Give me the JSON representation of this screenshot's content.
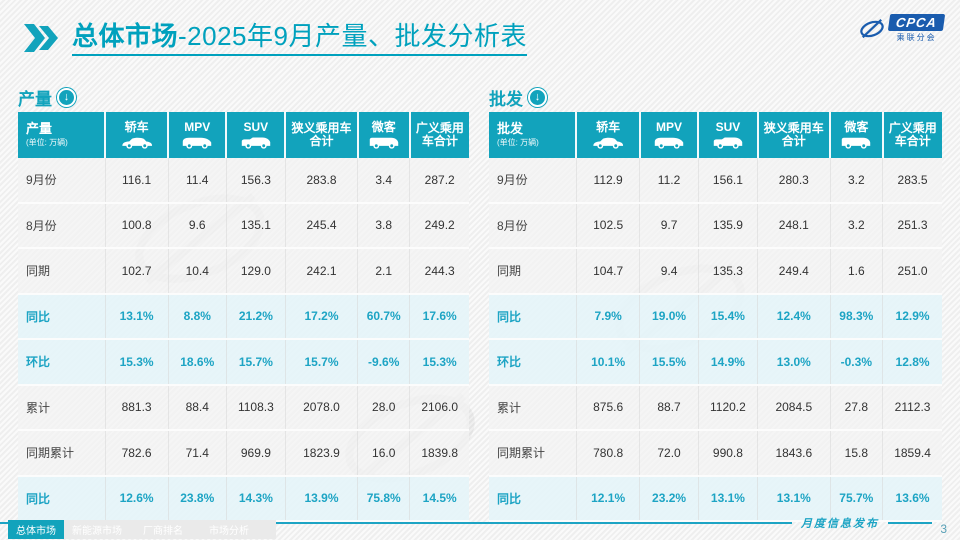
{
  "header": {
    "title_bold": "总体市场",
    "title_rest": "-2025年9月产量、批发分析表",
    "logo_text": "CPCA",
    "logo_subtext": "乘联分会"
  },
  "columns": [
    {
      "label": "轿车",
      "icon": "sedan-icon"
    },
    {
      "label": "MPV",
      "icon": "mpv-icon"
    },
    {
      "label": "SUV",
      "icon": "suv-icon"
    },
    {
      "label": "狭义乘用车合计",
      "icon": ""
    },
    {
      "label": "微客",
      "icon": "microvan-icon"
    },
    {
      "label": "广义乘用车合计",
      "icon": ""
    }
  ],
  "tables": [
    {
      "section_label": "产量",
      "unit": "(单位: 万辆)",
      "rows": [
        {
          "label": "9月份",
          "type": "num",
          "values": [
            "116.1",
            "11.4",
            "156.3",
            "283.8",
            "3.4",
            "287.2"
          ]
        },
        {
          "label": "8月份",
          "type": "num",
          "values": [
            "100.8",
            "9.6",
            "135.1",
            "245.4",
            "3.8",
            "249.2"
          ]
        },
        {
          "label": "同期",
          "type": "num",
          "values": [
            "102.7",
            "10.4",
            "129.0",
            "242.1",
            "2.1",
            "244.3"
          ]
        },
        {
          "label": "同比",
          "type": "pct",
          "values": [
            "13.1%",
            "8.8%",
            "21.2%",
            "17.2%",
            "60.7%",
            "17.6%"
          ]
        },
        {
          "label": "环比",
          "type": "pct",
          "values": [
            "15.3%",
            "18.6%",
            "15.7%",
            "15.7%",
            "-9.6%",
            "15.3%"
          ]
        },
        {
          "label": "累计",
          "type": "num",
          "values": [
            "881.3",
            "88.4",
            "1108.3",
            "2078.0",
            "28.0",
            "2106.0"
          ]
        },
        {
          "label": "同期累计",
          "type": "num",
          "values": [
            "782.6",
            "71.4",
            "969.9",
            "1823.9",
            "16.0",
            "1839.8"
          ]
        },
        {
          "label": "同比",
          "type": "pct",
          "values": [
            "12.6%",
            "23.8%",
            "14.3%",
            "13.9%",
            "75.8%",
            "14.5%"
          ]
        }
      ]
    },
    {
      "section_label": "批发",
      "unit": "(单位: 万辆)",
      "rows": [
        {
          "label": "9月份",
          "type": "num",
          "values": [
            "112.9",
            "11.2",
            "156.1",
            "280.3",
            "3.2",
            "283.5"
          ]
        },
        {
          "label": "8月份",
          "type": "num",
          "values": [
            "102.5",
            "9.7",
            "135.9",
            "248.1",
            "3.2",
            "251.3"
          ]
        },
        {
          "label": "同期",
          "type": "num",
          "values": [
            "104.7",
            "9.4",
            "135.3",
            "249.4",
            "1.6",
            "251.0"
          ]
        },
        {
          "label": "同比",
          "type": "pct",
          "values": [
            "7.9%",
            "19.0%",
            "15.4%",
            "12.4%",
            "98.3%",
            "12.9%"
          ]
        },
        {
          "label": "环比",
          "type": "pct",
          "values": [
            "10.1%",
            "15.5%",
            "14.9%",
            "13.0%",
            "-0.3%",
            "12.8%"
          ]
        },
        {
          "label": "累计",
          "type": "num",
          "values": [
            "875.6",
            "88.7",
            "1120.2",
            "2084.5",
            "27.8",
            "2112.3"
          ]
        },
        {
          "label": "同期累计",
          "type": "num",
          "values": [
            "780.8",
            "72.0",
            "990.8",
            "1843.6",
            "15.8",
            "1859.4"
          ]
        },
        {
          "label": "同比",
          "type": "pct",
          "values": [
            "12.1%",
            "23.2%",
            "13.1%",
            "13.1%",
            "75.7%",
            "13.6%"
          ]
        }
      ]
    }
  ],
  "footer": {
    "tabs": [
      {
        "label": "总体市场",
        "active": true
      },
      {
        "label": "新能源市场",
        "active": false
      },
      {
        "label": "厂商排名",
        "active": false
      },
      {
        "label": "市场分析",
        "active": false
      }
    ],
    "publication": "月度信息发布",
    "page_number": "3"
  },
  "colors": {
    "teal": "#12a3bc",
    "title": "#00a1bd",
    "pct_text": "#1da4c4",
    "pct_row_bg": "#e5f4f9",
    "logo_blue": "#1a5cae"
  }
}
